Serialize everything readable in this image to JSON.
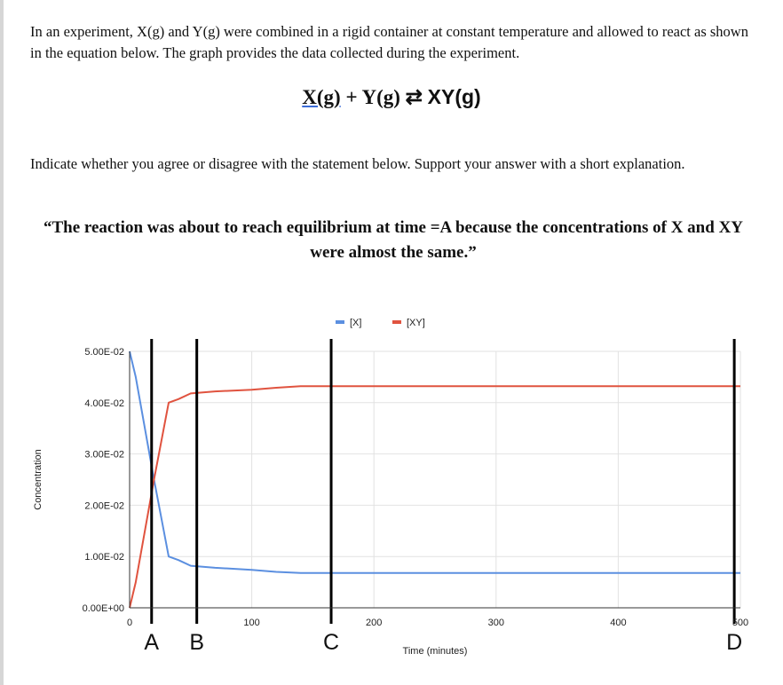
{
  "intro_text": "In an experiment, X(g) and Y(g) were combined in a rigid container at constant temperature and allowed to react as shown in the equation below.  The graph provides the data collected during the experiment.",
  "equation": {
    "reactant_1": "X(g)",
    "plus": "+",
    "reactant_2": "Y(g)",
    "arrow": "⇄",
    "product": "XY(g)"
  },
  "prompt_text": "Indicate whether you agree or disagree with the statement below.  Support your answer with a short explanation.",
  "statement_text": "“The reaction was about to reach equilibrium at time =A because the concentrations of X and XY were almost the same.”",
  "colors": {
    "x_series": "#5b8fe0",
    "xy_series": "#e0533f",
    "grid": "#e2e2e2",
    "marker": "#000000"
  },
  "chart_data": {
    "type": "line",
    "title": "",
    "xlabel": "Time (minutes)",
    "ylabel": "Concentration",
    "xlim": [
      0,
      500
    ],
    "ylim": [
      0,
      0.05
    ],
    "x_ticks": [
      0,
      100,
      200,
      300,
      400,
      500
    ],
    "x_tick_labels": [
      "0",
      "100",
      "200",
      "300",
      "400",
      "500"
    ],
    "y_ticks": [
      0,
      0.01,
      0.02,
      0.03,
      0.04,
      0.05
    ],
    "y_tick_labels": [
      "0.00E+00",
      "1.00E-02",
      "2.00E-02",
      "3.00E-02",
      "4.00E-02",
      "5.00E-02"
    ],
    "legend": [
      "[X]",
      "[XY]"
    ],
    "legend_position": "top",
    "series": [
      {
        "name": "[X]",
        "points": [
          [
            0,
            0.05
          ],
          [
            5,
            0.045
          ],
          [
            20,
            0.025
          ],
          [
            32,
            0.01
          ],
          [
            40,
            0.0093
          ],
          [
            50,
            0.0082
          ],
          [
            70,
            0.0078
          ],
          [
            100,
            0.0074
          ],
          [
            120,
            0.007
          ],
          [
            140,
            0.0068
          ],
          [
            500,
            0.0068
          ]
        ]
      },
      {
        "name": "[XY]",
        "points": [
          [
            0,
            0
          ],
          [
            5,
            0.005
          ],
          [
            20,
            0.025
          ],
          [
            32,
            0.04
          ],
          [
            40,
            0.0407
          ],
          [
            50,
            0.0418
          ],
          [
            70,
            0.0422
          ],
          [
            100,
            0.0425
          ],
          [
            120,
            0.0429
          ],
          [
            140,
            0.0432
          ],
          [
            500,
            0.0432
          ]
        ]
      }
    ],
    "markers": [
      {
        "label": "A",
        "x": 18
      },
      {
        "label": "B",
        "x": 55
      },
      {
        "label": "C",
        "x": 165
      },
      {
        "label": "D",
        "x": 495
      }
    ]
  }
}
